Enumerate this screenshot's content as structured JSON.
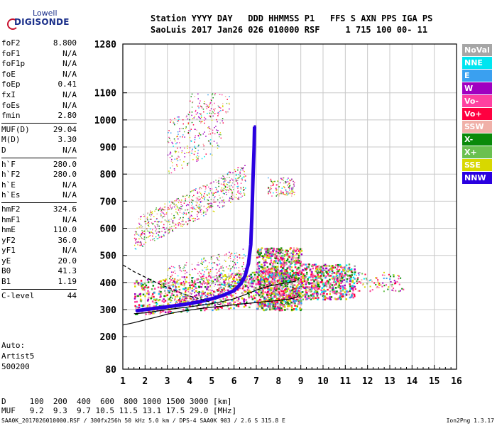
{
  "logo": {
    "line1": "Lowell",
    "line2": "DIGISONDE"
  },
  "header": {
    "line1": "Station YYYY DAY   DDD HHMMSS P1   FFS S AXN PPS IGA PS",
    "line2": "SaoLuis 2017 Jan26 026 010000 RSF     1 715 100 00- 11"
  },
  "params": [
    {
      "k": "foF2",
      "v": "8.800"
    },
    {
      "k": "foF1",
      "v": "N/A"
    },
    {
      "k": "foF1p",
      "v": "N/A"
    },
    {
      "k": "foE",
      "v": "N/A"
    },
    {
      "k": "foEp",
      "v": "0.41"
    },
    {
      "k": "fxI",
      "v": "N/A"
    },
    {
      "k": "foEs",
      "v": "N/A"
    },
    {
      "k": "fmin",
      "v": "2.80"
    },
    {
      "k": "MUF(D)",
      "v": "29.04"
    },
    {
      "k": "M(D)",
      "v": "3.30"
    },
    {
      "k": "D",
      "v": "N/A"
    },
    {
      "k": "h`F",
      "v": "280.0"
    },
    {
      "k": "h`F2",
      "v": "280.0"
    },
    {
      "k": "h`E",
      "v": "N/A"
    },
    {
      "k": "h`Es",
      "v": "N/A"
    },
    {
      "k": "hmF2",
      "v": "324.6"
    },
    {
      "k": "hmF1",
      "v": "N/A"
    },
    {
      "k": "hmE",
      "v": "110.0"
    },
    {
      "k": "yF2",
      "v": "36.0"
    },
    {
      "k": "yF1",
      "v": "N/A"
    },
    {
      "k": "yE",
      "v": "20.0"
    },
    {
      "k": "B0",
      "v": "41.3"
    },
    {
      "k": "B1",
      "v": "1.19"
    },
    {
      "k": "C-level",
      "v": "44"
    }
  ],
  "auto": {
    "l1": "Auto:",
    "l2": "Artist5",
    "l3": "500200"
  },
  "muf_table": {
    "d_line": "D     100  200  400  600  800 1000 1500 3000 [km]",
    "muf_line": "MUF   9.2  9.3  9.7 10.5 11.5 13.1 17.5 29.0 [MHz]"
  },
  "footer": {
    "left": "SAA0K_2017026010000.RSF / 300fx256h 50 kHz 5.0 km / DPS-4 SAA0K 903 / 2.6 S 315.8 E",
    "right": "Ion2Png 1.3.17"
  },
  "legend": [
    {
      "label": "NoVal",
      "color": "#a6a6a6"
    },
    {
      "label": "NNE",
      "color": "#00e5f0"
    },
    {
      "label": "E",
      "color": "#3aa0f0"
    },
    {
      "label": "W",
      "color": "#a000c0"
    },
    {
      "label": "Vo-",
      "color": "#ff40a0"
    },
    {
      "label": "Vo+",
      "color": "#ff0040"
    },
    {
      "label": "SSW",
      "color": "#f0b0a8"
    },
    {
      "label": "X-",
      "color": "#0a8a0a"
    },
    {
      "label": "X+",
      "color": "#6ac050"
    },
    {
      "label": "SSE",
      "color": "#d8d800"
    },
    {
      "label": "NNW",
      "color": "#2a00e0"
    }
  ],
  "chart_data": {
    "type": "scatter",
    "x_ticks": [
      1,
      2,
      3,
      4,
      5,
      6,
      7,
      8,
      9,
      10,
      11,
      12,
      13,
      14,
      15,
      16
    ],
    "y_ticks": [
      80,
      200,
      300,
      400,
      500,
      600,
      700,
      800,
      900,
      1000,
      1100,
      1280
    ],
    "xlim": [
      1,
      16
    ],
    "ylim": [
      80,
      1280
    ],
    "grid": true,
    "profile_line": [
      [
        1.0,
        243
      ],
      [
        1.5,
        252
      ],
      [
        2.0,
        262
      ],
      [
        2.5,
        272
      ],
      [
        3.0,
        283
      ],
      [
        3.5,
        292
      ],
      [
        4.0,
        298
      ],
      [
        4.5,
        304
      ],
      [
        5.0,
        309
      ],
      [
        5.5,
        313
      ],
      [
        6.0,
        318
      ],
      [
        6.5,
        322
      ],
      [
        7.0,
        326
      ],
      [
        7.5,
        330
      ],
      [
        8.0,
        334
      ],
      [
        8.5,
        339
      ],
      [
        8.8,
        345
      ],
      [
        8.9,
        352
      ]
    ],
    "trace_line": [
      [
        1.5,
        285
      ],
      [
        2,
        288
      ],
      [
        3,
        300
      ],
      [
        4,
        310
      ],
      [
        5,
        322
      ],
      [
        5.5,
        330
      ],
      [
        6,
        340
      ],
      [
        6.5,
        355
      ],
      [
        7,
        372
      ],
      [
        7.5,
        385
      ],
      [
        8,
        394
      ],
      [
        8.5,
        400
      ],
      [
        8.8,
        406
      ]
    ],
    "dashed_line": [
      [
        1.0,
        465
      ],
      [
        1.5,
        440
      ],
      [
        2.0,
        420
      ],
      [
        2.5,
        400
      ],
      [
        3.0,
        382
      ],
      [
        3.5,
        365
      ],
      [
        4.0,
        350
      ],
      [
        4.5,
        338
      ],
      [
        5.0,
        326
      ],
      [
        5.5,
        316
      ]
    ],
    "nnw_trace": [
      [
        1.6,
        295
      ],
      [
        2,
        300
      ],
      [
        2.5,
        305
      ],
      [
        3,
        310
      ],
      [
        3.5,
        316
      ],
      [
        4,
        322
      ],
      [
        4.5,
        330
      ],
      [
        5,
        340
      ],
      [
        5.5,
        352
      ],
      [
        6,
        370
      ],
      [
        6.3,
        395
      ],
      [
        6.5,
        425
      ],
      [
        6.65,
        470
      ],
      [
        6.75,
        540
      ],
      [
        6.8,
        640
      ],
      [
        6.85,
        780
      ],
      [
        6.9,
        900
      ],
      [
        6.92,
        975
      ]
    ]
  }
}
